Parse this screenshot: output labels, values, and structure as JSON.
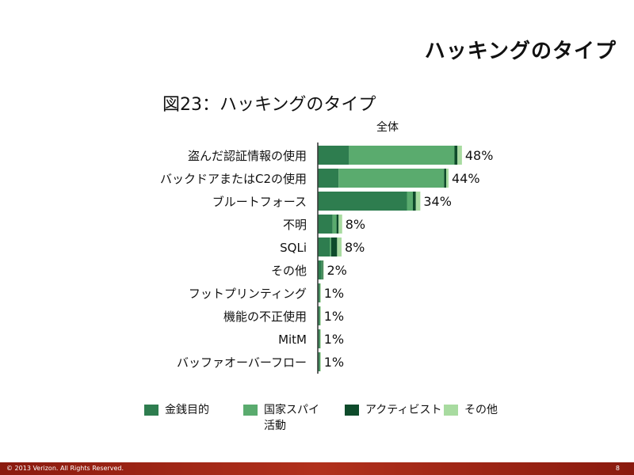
{
  "slide": {
    "title": "ハッキングのタイプ",
    "copyright": "© 2013 Verizon. All Rights Reserved.",
    "page_number": "8"
  },
  "chart_data": {
    "type": "bar",
    "orientation": "horizontal",
    "stacked": true,
    "title": "図23：ハッキングのタイプ",
    "subtitle": "全体",
    "categories": [
      "盗んだ認証情報の使用",
      "バックドアまたはC2の使用",
      "ブルートフォース",
      "不明",
      "SQLi",
      "その他",
      "フットプリンティング",
      "機能の不正使用",
      "MitM",
      "バッファオーバーフロー"
    ],
    "total_labels": [
      "48%",
      "44%",
      "34%",
      "8%",
      "8%",
      "2%",
      "1%",
      "1%",
      "1%",
      "1%"
    ],
    "xlim": [
      0,
      48
    ],
    "series": [
      {
        "name": "金銭目的",
        "color": "#2e7d4f",
        "values": [
          10.5,
          7,
          30,
          5,
          4,
          1.2,
          0.5,
          0.5,
          0.5,
          0.5
        ]
      },
      {
        "name": "国家スパイ\n活動",
        "color": "#5aab6e",
        "values": [
          35.5,
          35.5,
          2,
          1.3,
          0.5,
          0.3,
          0.2,
          0.2,
          0.2,
          0.2
        ]
      },
      {
        "name": "アクティビスト",
        "color": "#0e4b2b",
        "values": [
          1,
          0.7,
          1,
          0.7,
          2,
          0.3,
          0.1,
          0.1,
          0.1,
          0.1
        ]
      },
      {
        "name": "その他",
        "color": "#a8dba0",
        "values": [
          1.5,
          0.8,
          1.5,
          1.2,
          1.5,
          0.2,
          0.2,
          0.2,
          0.2,
          0.2
        ]
      }
    ],
    "legend_position": "bottom",
    "grid": false
  }
}
